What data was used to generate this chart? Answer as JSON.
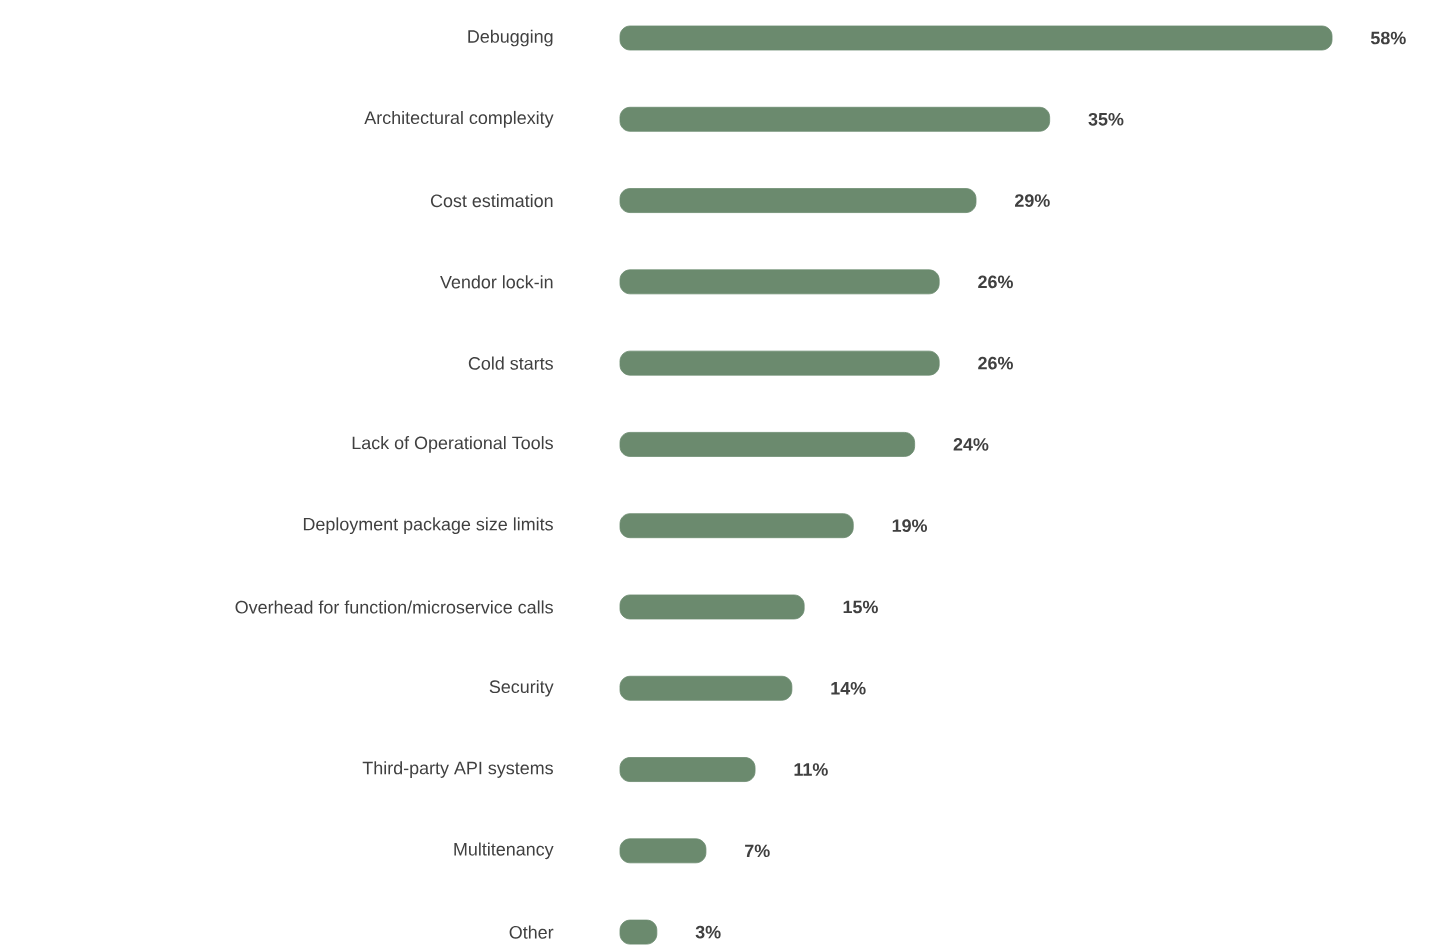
{
  "chart_data": {
    "type": "bar",
    "orientation": "horizontal",
    "categories": [
      "Debugging",
      "Architectural complexity",
      "Cost estimation",
      "Vendor lock-in",
      "Cold starts",
      "Lack of Operational Tools",
      "Deployment package size limits",
      "Overhead for function/microservice calls",
      "Security",
      "Third-party API systems",
      "Multitenancy",
      "Other"
    ],
    "values": [
      58,
      35,
      29,
      26,
      26,
      24,
      19,
      15,
      14,
      11,
      7,
      3
    ],
    "value_labels": [
      "58%",
      "35%",
      "29%",
      "26%",
      "26%",
      "24%",
      "19%",
      "15%",
      "14%",
      "11%",
      "7%",
      "3%"
    ],
    "color": "#6b8a6e",
    "tick_labels": "y"
  }
}
